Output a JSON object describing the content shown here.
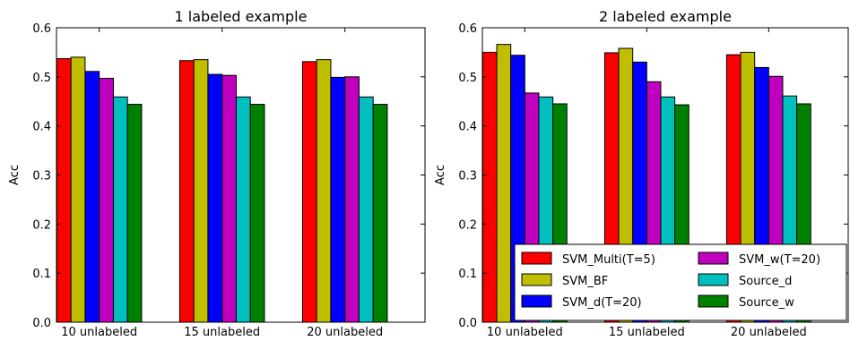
{
  "chart_data": [
    {
      "type": "bar",
      "title": "1 labeled example",
      "xlabel": "",
      "ylabel": "Acc",
      "ylim": [
        0,
        0.6
      ],
      "yticks": [
        "0.0",
        "0.1",
        "0.2",
        "0.3",
        "0.4",
        "0.5",
        "0.6"
      ],
      "categories": [
        "10 unlabeled",
        "15 unlabeled",
        "20 unlabeled"
      ],
      "grid": false,
      "legend": null,
      "series": [
        {
          "name": "SVM_Multi(T=5)",
          "color": "#ff0000",
          "values": [
            0.537,
            0.533,
            0.531
          ]
        },
        {
          "name": "SVM_BF",
          "color": "#bfbf00",
          "values": [
            0.54,
            0.535,
            0.535
          ]
        },
        {
          "name": "SVM_d(T=20)",
          "color": "#0000ff",
          "values": [
            0.511,
            0.505,
            0.499
          ]
        },
        {
          "name": "SVM_w(T=20)",
          "color": "#bf00bf",
          "values": [
            0.497,
            0.503,
            0.5
          ]
        },
        {
          "name": "Source_d",
          "color": "#00bfbf",
          "values": [
            0.459,
            0.459,
            0.459
          ]
        },
        {
          "name": "Source_w",
          "color": "#008000",
          "values": [
            0.444,
            0.444,
            0.444
          ]
        }
      ]
    },
    {
      "type": "bar",
      "title": "2 labeled example",
      "xlabel": "",
      "ylabel": "Acc",
      "ylim": [
        0,
        0.6
      ],
      "yticks": [
        "0.0",
        "0.1",
        "0.2",
        "0.3",
        "0.4",
        "0.5",
        "0.6"
      ],
      "categories": [
        "10 unlabeled",
        "15 unlabeled",
        "20 unlabeled"
      ],
      "grid": false,
      "legend": "lower-right",
      "series": [
        {
          "name": "SVM_Multi(T=5)",
          "color": "#ff0000",
          "values": [
            0.55,
            0.549,
            0.545
          ]
        },
        {
          "name": "SVM_BF",
          "color": "#bfbf00",
          "values": [
            0.566,
            0.558,
            0.55
          ]
        },
        {
          "name": "SVM_d(T=20)",
          "color": "#0000ff",
          "values": [
            0.544,
            0.53,
            0.519
          ]
        },
        {
          "name": "SVM_w(T=20)",
          "color": "#bf00bf",
          "values": [
            0.467,
            0.49,
            0.501
          ]
        },
        {
          "name": "Source_d",
          "color": "#00bfbf",
          "values": [
            0.459,
            0.459,
            0.461
          ]
        },
        {
          "name": "Source_w",
          "color": "#008000",
          "values": [
            0.445,
            0.443,
            0.445
          ]
        }
      ]
    }
  ]
}
